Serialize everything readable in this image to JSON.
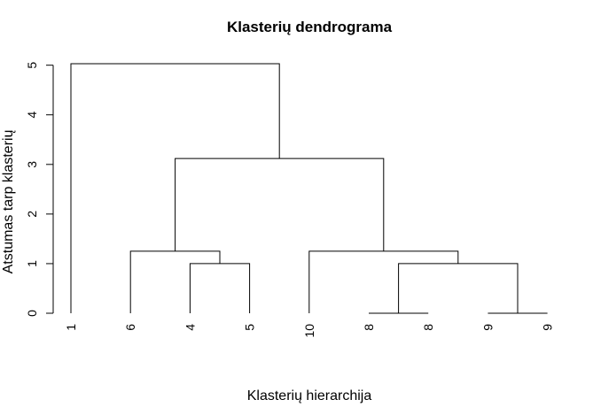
{
  "chart_data": {
    "type": "dendrogram",
    "title": "Klasterių dendrograma",
    "xlabel": "Klasterių hierarchija",
    "ylabel": "Atstumas tarp klasterių",
    "ylim": [
      0,
      5
    ],
    "yticks": [
      0,
      1,
      2,
      3,
      4,
      5
    ],
    "leaves": [
      "1",
      "6",
      "4",
      "5",
      "10",
      "8",
      "8",
      "9",
      "9"
    ],
    "merges": [
      {
        "left": "leaf:2",
        "right": "leaf:3",
        "height": 1.0
      },
      {
        "left": "leaf:1",
        "right": "node:0",
        "height": 1.25
      },
      {
        "left": "leaf:5",
        "right": "leaf:6",
        "height": 0.0
      },
      {
        "left": "leaf:7",
        "right": "leaf:8",
        "height": 0.0
      },
      {
        "left": "node:2",
        "right": "node:3",
        "height": 1.0
      },
      {
        "left": "leaf:4",
        "right": "node:4",
        "height": 1.25
      },
      {
        "left": "node:1",
        "right": "node:5",
        "height": 3.12
      },
      {
        "left": "leaf:0",
        "right": "node:6",
        "height": 5.03
      }
    ]
  }
}
